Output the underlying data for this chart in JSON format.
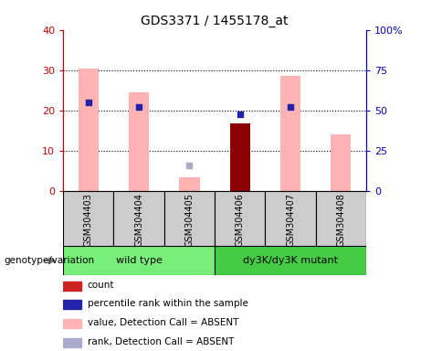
{
  "title": "GDS3371 / 1455178_at",
  "samples": [
    "GSM304403",
    "GSM304404",
    "GSM304405",
    "GSM304406",
    "GSM304407",
    "GSM304408"
  ],
  "group_names": [
    "wild type",
    "dy3K/dy3K mutant"
  ],
  "wt_color": "#77ee77",
  "dy_color": "#44cc44",
  "pink_values": [
    30.5,
    24.5,
    3.5,
    null,
    28.5,
    14.0
  ],
  "red_values": [
    null,
    null,
    null,
    16.8,
    null,
    null
  ],
  "blue_rank_left": [
    22.0,
    21.0,
    null,
    19.0,
    21.0,
    null
  ],
  "lightblue_rank_left": [
    null,
    null,
    6.5,
    null,
    null,
    null
  ],
  "left_ylim": [
    0,
    40
  ],
  "right_ylim": [
    0,
    100
  ],
  "left_yticks": [
    0,
    10,
    20,
    30,
    40
  ],
  "right_yticks": [
    0,
    25,
    50,
    75,
    100
  ],
  "right_yticklabels": [
    "0",
    "25",
    "50",
    "75",
    "100%"
  ],
  "left_color": "#cc0000",
  "right_color": "#0000cc",
  "pink_color": "#ffb3b3",
  "red_color": "#8b0000",
  "blue_color": "#2222aa",
  "lightblue_color": "#aaaacc",
  "bar_width": 0.4,
  "genotype_label": "genotype/variation",
  "legend_items": [
    {
      "label": "count",
      "color": "#cc2222"
    },
    {
      "label": "percentile rank within the sample",
      "color": "#2222aa"
    },
    {
      "label": "value, Detection Call = ABSENT",
      "color": "#ffb3b3"
    },
    {
      "label": "rank, Detection Call = ABSENT",
      "color": "#aaaacc"
    }
  ],
  "grid_yticks": [
    10,
    20,
    30
  ]
}
